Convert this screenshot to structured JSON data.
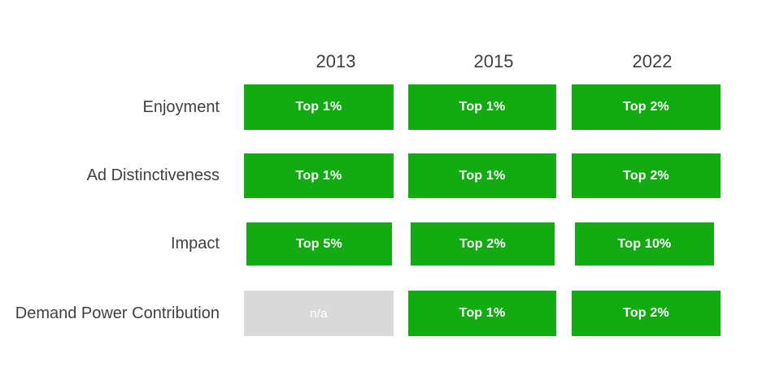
{
  "chart_data": {
    "type": "table",
    "columns": [
      "2013",
      "2015",
      "2022"
    ],
    "row_labels": [
      "Enjoyment",
      "Ad Distinctiveness",
      "Impact",
      "Demand Power Contribution"
    ],
    "cells": [
      [
        {
          "value": "Top 1%",
          "state": "good"
        },
        {
          "value": "Top 1%",
          "state": "good"
        },
        {
          "value": "Top 2%",
          "state": "good"
        }
      ],
      [
        {
          "value": "Top 1%",
          "state": "good"
        },
        {
          "value": "Top 1%",
          "state": "good"
        },
        {
          "value": "Top 2%",
          "state": "good"
        }
      ],
      [
        {
          "value": "Top 5%",
          "state": "good"
        },
        {
          "value": "Top 2%",
          "state": "good"
        },
        {
          "value": "Top 10%",
          "state": "good"
        }
      ],
      [
        {
          "value": "n/a",
          "state": "na"
        },
        {
          "value": "Top 1%",
          "state": "good"
        },
        {
          "value": "Top 2%",
          "state": "good"
        }
      ]
    ],
    "colors": {
      "positive_cell": "#12ab12",
      "na_cell": "#d9d9d9",
      "cell_text": "#ffffff",
      "label_text": "#404040"
    },
    "legend_position": "none",
    "grid": false
  }
}
